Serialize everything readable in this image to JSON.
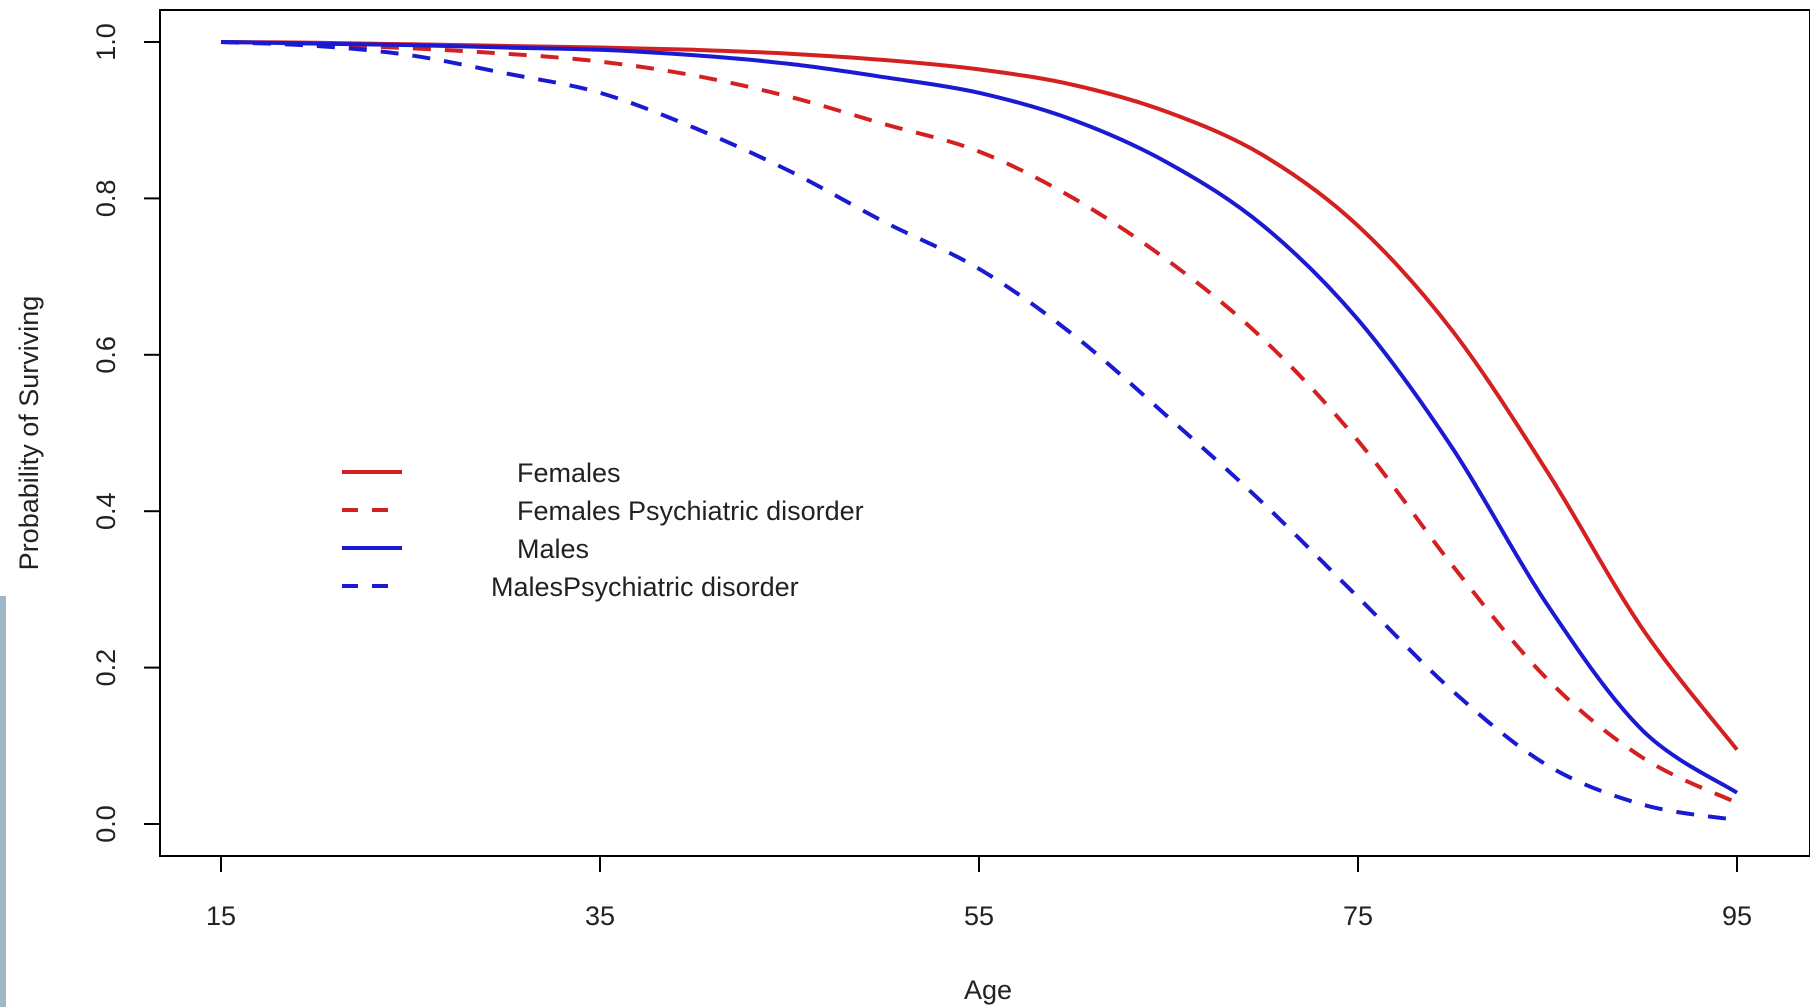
{
  "page": {
    "left_strip_color": "#9fb7c7"
  },
  "chart_data": {
    "type": "line",
    "title": "",
    "xlabel": "Age",
    "ylabel": "Probability of Surviving",
    "xlim": [
      15,
      95
    ],
    "ylim": [
      0.0,
      1.0
    ],
    "x_ticks": [
      "15",
      "35",
      "55",
      "75",
      "95"
    ],
    "y_ticks": [
      "0.0",
      "0.2",
      "0.4",
      "0.6",
      "0.8",
      "1.0"
    ],
    "grid": false,
    "legend_position": "center-left",
    "x": [
      15,
      20,
      25,
      30,
      35,
      40,
      45,
      50,
      55,
      60,
      65,
      70,
      75,
      80,
      85,
      90,
      95
    ],
    "series": [
      {
        "name": "Females",
        "color": "#d42020",
        "style": "solid",
        "values": [
          1.0,
          0.999,
          0.997,
          0.995,
          0.993,
          0.99,
          0.985,
          0.977,
          0.965,
          0.945,
          0.91,
          0.855,
          0.765,
          0.63,
          0.45,
          0.25,
          0.095
        ]
      },
      {
        "name": "Females Psychiatric disorder",
        "color": "#d42020",
        "style": "dashed",
        "values": [
          1.0,
          0.997,
          0.992,
          0.985,
          0.975,
          0.957,
          0.93,
          0.895,
          0.86,
          0.8,
          0.72,
          0.62,
          0.49,
          0.33,
          0.185,
          0.085,
          0.027
        ]
      },
      {
        "name": "Males",
        "color": "#1a1ad2",
        "style": "solid",
        "values": [
          1.0,
          0.998,
          0.996,
          0.993,
          0.99,
          0.983,
          0.972,
          0.955,
          0.935,
          0.9,
          0.845,
          0.765,
          0.645,
          0.48,
          0.28,
          0.12,
          0.04
        ]
      },
      {
        "name": "MalesPsychiatric disorder",
        "color": "#1a1ad2",
        "style": "dashed",
        "values": [
          1.0,
          0.995,
          0.983,
          0.96,
          0.935,
          0.89,
          0.835,
          0.77,
          0.71,
          0.625,
          0.52,
          0.41,
          0.29,
          0.17,
          0.075,
          0.025,
          0.005
        ]
      }
    ]
  }
}
